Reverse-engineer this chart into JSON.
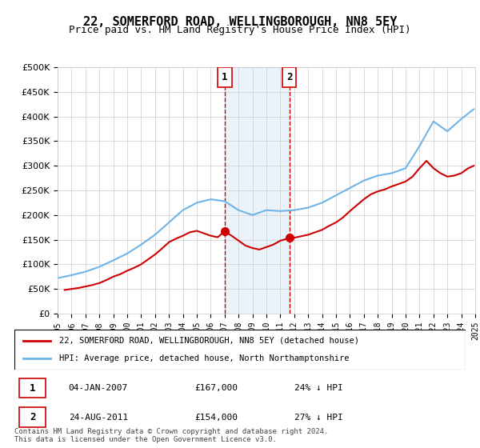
{
  "title": "22, SOMERFORD ROAD, WELLINGBOROUGH, NN8 5EY",
  "subtitle": "Price paid vs. HM Land Registry's House Price Index (HPI)",
  "legend_line1": "22, SOMERFORD ROAD, WELLINGBOROUGH, NN8 5EY (detached house)",
  "legend_line2": "HPI: Average price, detached house, North Northamptonshire",
  "sale1_label": "1",
  "sale1_date": "04-JAN-2007",
  "sale1_price": "£167,000",
  "sale1_hpi": "24% ↓ HPI",
  "sale1_year": 2007.0,
  "sale1_value": 167000,
  "sale2_label": "2",
  "sale2_date": "24-AUG-2011",
  "sale2_price": "£154,000",
  "sale2_hpi": "27% ↓ HPI",
  "sale2_year": 2011.65,
  "sale2_value": 154000,
  "hpi_color": "#6eb4e8",
  "sale_color": "#cc0000",
  "marker_color": "#cc0000",
  "highlight_color": "#d6e8f5",
  "highlight_alpha": 0.5,
  "grid_color": "#cccccc",
  "background_color": "#ffffff",
  "ylim": [
    0,
    500000
  ],
  "xlim_start": 1995,
  "xlim_end": 2025,
  "footnote": "Contains HM Land Registry data © Crown copyright and database right 2024.\nThis data is licensed under the Open Government Licence v3.0.",
  "hpi_years": [
    1995,
    1996,
    1997,
    1998,
    1999,
    2000,
    2001,
    2002,
    2003,
    2004,
    2005,
    2006,
    2007,
    2008,
    2009,
    2010,
    2011,
    2012,
    2013,
    2014,
    2015,
    2016,
    2017,
    2018,
    2019,
    2020,
    2021,
    2022,
    2023,
    2024,
    2024.9
  ],
  "hpi_values": [
    72000,
    78000,
    85000,
    95000,
    108000,
    122000,
    140000,
    160000,
    185000,
    210000,
    225000,
    232000,
    228000,
    210000,
    200000,
    210000,
    208000,
    210000,
    215000,
    225000,
    240000,
    255000,
    270000,
    280000,
    285000,
    295000,
    340000,
    390000,
    370000,
    395000,
    415000
  ],
  "sale_years": [
    1995.5,
    1996.0,
    1996.5,
    1997.0,
    1997.5,
    1998.0,
    1998.5,
    1999.0,
    1999.5,
    2000.0,
    2000.5,
    2001.0,
    2001.5,
    2002.0,
    2002.5,
    2003.0,
    2003.5,
    2004.0,
    2004.5,
    2005.0,
    2005.5,
    2006.0,
    2006.5,
    2007.0,
    2007.5,
    2008.0,
    2008.5,
    2009.0,
    2009.5,
    2010.0,
    2010.5,
    2011.0,
    2011.5,
    2012.0,
    2012.5,
    2013.0,
    2013.5,
    2014.0,
    2014.5,
    2015.0,
    2015.5,
    2016.0,
    2016.5,
    2017.0,
    2017.5,
    2018.0,
    2018.5,
    2019.0,
    2019.5,
    2020.0,
    2020.5,
    2021.0,
    2021.5,
    2022.0,
    2022.5,
    2023.0,
    2023.5,
    2024.0,
    2024.5,
    2024.9
  ],
  "sale_values": [
    48000,
    50000,
    52000,
    55000,
    58000,
    62000,
    68000,
    75000,
    80000,
    87000,
    93000,
    100000,
    110000,
    120000,
    132000,
    145000,
    152000,
    158000,
    165000,
    168000,
    163000,
    158000,
    155000,
    167000,
    158000,
    148000,
    138000,
    133000,
    130000,
    135000,
    140000,
    148000,
    152000,
    154000,
    157000,
    160000,
    165000,
    170000,
    178000,
    185000,
    195000,
    208000,
    220000,
    232000,
    242000,
    248000,
    252000,
    258000,
    263000,
    268000,
    278000,
    295000,
    310000,
    295000,
    285000,
    278000,
    280000,
    285000,
    295000,
    300000
  ]
}
